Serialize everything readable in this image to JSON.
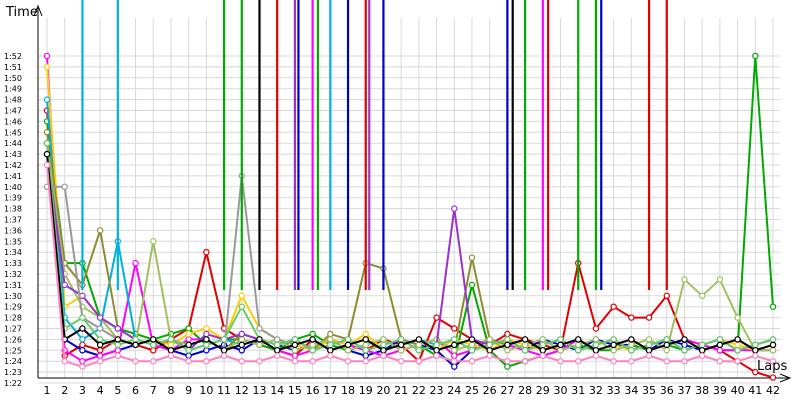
{
  "chart_data": {
    "type": "line",
    "ylabel": "Time",
    "xlabel": "Laps",
    "grid": true,
    "x": [
      1,
      2,
      3,
      4,
      5,
      6,
      7,
      8,
      9,
      10,
      11,
      12,
      13,
      14,
      15,
      16,
      17,
      18,
      19,
      20,
      21,
      22,
      23,
      24,
      25,
      26,
      27,
      28,
      29,
      30,
      31,
      32,
      33,
      34,
      35,
      36,
      37,
      38,
      39,
      40,
      41,
      42
    ],
    "yticks": [
      "1:22",
      "1:23",
      "1:24",
      "1:25",
      "1:26",
      "1:27",
      "1:28",
      "1:29",
      "1:30",
      "1:31",
      "1:32",
      "1:33",
      "1:34",
      "1:35",
      "1:36",
      "1:37",
      "1:38",
      "1:39",
      "1:40",
      "1:41",
      "1:42",
      "1:43",
      "1:44",
      "1:45",
      "1:46",
      "1:47",
      "1:48",
      "1:49",
      "1:50",
      "1:51",
      "1:52"
    ],
    "yticks_seconds": [
      82,
      83,
      84,
      85,
      86,
      87,
      88,
      89,
      90,
      91,
      92,
      93,
      94,
      95,
      96,
      97,
      98,
      99,
      100,
      101,
      102,
      103,
      104,
      105,
      106,
      107,
      108,
      109,
      110,
      111,
      112
    ],
    "ylim": [
      81,
      114
    ],
    "series": [
      {
        "color": "#e00000",
        "values": [
          107,
          84.5,
          85.5,
          85,
          86,
          85.5,
          85,
          86,
          87,
          94,
          87,
          86,
          85.5,
          85,
          84.5,
          86,
          85,
          85.5,
          85,
          86,
          85.5,
          84,
          88,
          87,
          86,
          85.5,
          86.5,
          86,
          85.5,
          85,
          93,
          87,
          89,
          88,
          88,
          90,
          86,
          85.5,
          85,
          84,
          83,
          82.5
        ]
      },
      {
        "color": "#0000cc",
        "values": [
          104,
          86,
          85,
          84.5,
          85,
          85.5,
          86,
          85,
          84.5,
          85,
          85.5,
          85,
          86,
          85.5,
          85,
          85.5,
          86,
          85,
          84.5,
          85,
          86,
          85.5,
          85,
          83.5,
          85,
          86,
          85.5,
          85,
          86,
          85.5,
          85,
          86,
          85.5,
          85.5,
          85,
          86,
          85.5,
          85,
          85.5,
          86,
          85,
          85
        ]
      },
      {
        "color": "#00aa00",
        "values": [
          106,
          93,
          93,
          88,
          87,
          86.5,
          86,
          86.5,
          87,
          85.5,
          86,
          86,
          85.5,
          85,
          86,
          86.5,
          85.5,
          85,
          85.5,
          86,
          85,
          85.5,
          84.5,
          84,
          91,
          85,
          83.5,
          84,
          84.5,
          85,
          85.5,
          85,
          85,
          85.5,
          85,
          85.5,
          85,
          85.5,
          85,
          85,
          112,
          89
        ]
      },
      {
        "color": "#ff00ff",
        "values": [
          112,
          85,
          84,
          84.5,
          85,
          93,
          85.5,
          85,
          86,
          86,
          85,
          85.5,
          86,
          85,
          84.5,
          85,
          86,
          85.5,
          85,
          84.5,
          85,
          85.5,
          86,
          84.5,
          85,
          86,
          85.5,
          85,
          84.5,
          85,
          86,
          85,
          85.5,
          86,
          85,
          85.5,
          86,
          85.5,
          85,
          85,
          85,
          85.5
        ]
      },
      {
        "color": "#ffcc00",
        "values": [
          111,
          89,
          90,
          88,
          86,
          85.5,
          86,
          85.5,
          86.5,
          87,
          86,
          90,
          87,
          86,
          85.5,
          85,
          86,
          85.5,
          86.5,
          85,
          85.5,
          86,
          85,
          86,
          85.5,
          85,
          86,
          85.5,
          85,
          85.5,
          86,
          85,
          85.5,
          85,
          85.5,
          86,
          85,
          85.5,
          86,
          85.5,
          85,
          85
        ]
      },
      {
        "color": "#00b0e0",
        "values": [
          108,
          88,
          86,
          87,
          95,
          86,
          85.5,
          86,
          85,
          85.5,
          86,
          85.5,
          86,
          85,
          85.5,
          86,
          85,
          85.5,
          86,
          85,
          85.5,
          86,
          85.5,
          86,
          85,
          85.5,
          86,
          85,
          85.5,
          86,
          85,
          85.5,
          86,
          85,
          85.5,
          86,
          85,
          85.5,
          86,
          85,
          85.5,
          86
        ]
      },
      {
        "color": "#8c8c30",
        "values": [
          105,
          93,
          91,
          96,
          87,
          86,
          85.5,
          86,
          85.5,
          86,
          85,
          86.5,
          86,
          85.5,
          86,
          85,
          86.5,
          86,
          93,
          92.5,
          86,
          85.5,
          86,
          85,
          93.5,
          86,
          85.5,
          86,
          85,
          85.5,
          86,
          85,
          85.5,
          86,
          85,
          85.5,
          86,
          85,
          85.5,
          86,
          85,
          85.5
        ]
      },
      {
        "color": "#a0c060",
        "values": [
          104,
          92,
          89,
          88,
          86,
          85.5,
          95,
          86,
          85.5,
          86,
          85,
          86,
          85.5,
          86,
          85,
          85.5,
          86,
          85,
          85.5,
          86,
          85,
          85.5,
          86,
          85,
          85.5,
          86,
          85,
          85.5,
          86,
          85,
          85.5,
          86,
          85,
          85.5,
          86,
          85,
          91.5,
          90,
          91.5,
          88,
          85,
          85
        ]
      },
      {
        "color": "#9933cc",
        "values": [
          103,
          91,
          90,
          88,
          87,
          86,
          85.5,
          86,
          85,
          86.5,
          86,
          86.5,
          86,
          85.5,
          86,
          85,
          85.5,
          86,
          85,
          85.5,
          86,
          85,
          85.5,
          98,
          86,
          85.5,
          86,
          85,
          85.5,
          86,
          85,
          85.5,
          86,
          85,
          85.5,
          86,
          85,
          85.5,
          86,
          85,
          85.5,
          86
        ]
      },
      {
        "color": "#999999",
        "values": [
          100,
          100,
          88,
          87,
          86,
          85.5,
          86,
          85,
          85.5,
          86,
          85,
          101,
          87,
          86,
          85.5,
          86,
          85,
          85.5,
          86,
          85,
          85.5,
          86,
          85,
          85.5,
          86,
          85,
          85.5,
          86,
          85,
          85.5,
          86,
          85,
          85.5,
          86,
          85,
          85.5,
          86,
          85,
          85.5,
          86,
          85,
          85.5
        ]
      },
      {
        "color": "#66cc66",
        "values": [
          104,
          87,
          88,
          86,
          85.5,
          86,
          85.5,
          86,
          85,
          85.5,
          86,
          89,
          86,
          85.5,
          86,
          85,
          85.5,
          86,
          85,
          85.5,
          86,
          85,
          85.5,
          86,
          85,
          85.5,
          86,
          85,
          85.5,
          86,
          85,
          85.5,
          86,
          85,
          85.5,
          86,
          85,
          85.5,
          86,
          85,
          85.5,
          86
        ]
      },
      {
        "color": "#000000",
        "values": [
          103,
          86,
          87,
          85.5,
          86,
          85.5,
          86,
          85,
          85.5,
          86,
          85,
          85.5,
          86,
          85,
          85.5,
          86,
          85,
          85.5,
          86,
          85,
          85.5,
          86,
          85,
          85.5,
          86,
          85,
          85.5,
          86,
          85,
          85.5,
          86,
          85,
          85.5,
          86,
          85,
          85.5,
          86,
          85,
          85.5,
          86,
          85,
          85.5
        ]
      },
      {
        "color": "#ff80c0",
        "values": [
          102,
          84,
          83.5,
          84,
          84.5,
          84,
          84,
          84.5,
          84,
          84,
          84.5,
          84,
          84,
          84.5,
          84,
          84,
          84.5,
          84,
          84,
          84.5,
          84,
          84,
          84.5,
          84,
          84,
          84.5,
          84,
          84,
          84.5,
          84,
          84,
          84.5,
          84,
          84,
          84.5,
          84,
          84,
          84.5,
          84,
          84,
          84.5,
          84
        ]
      }
    ]
  }
}
